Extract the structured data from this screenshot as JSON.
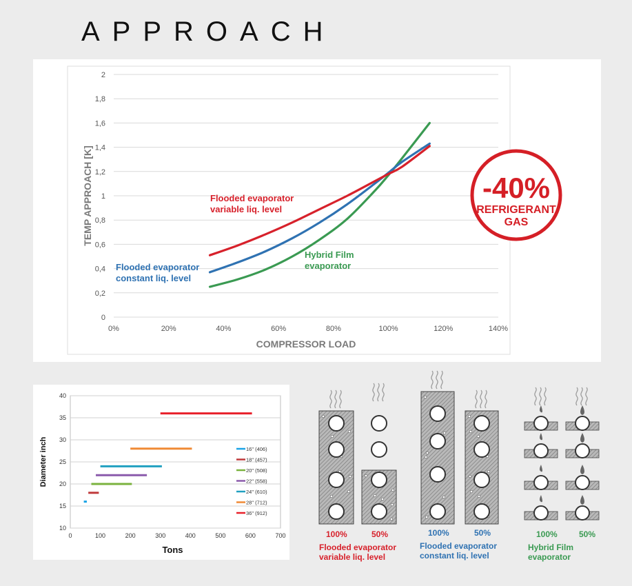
{
  "title": "APPROACH",
  "badge": {
    "line1": "-40%",
    "line2": "REFRIGERANT",
    "line3": "GAS",
    "color": "#d51f26"
  },
  "chart_data": [
    {
      "type": "line",
      "xlabel": "COMPRESSOR LOAD",
      "ylabel": "TEMP APPROACH [K]",
      "xlim": [
        0,
        140
      ],
      "ylim": [
        0,
        2
      ],
      "x_ticks": [
        "0%",
        "20%",
        "40%",
        "60%",
        "80%",
        "100%",
        "120%",
        "140%"
      ],
      "y_ticks": [
        "0",
        "0,2",
        "0,4",
        "0,6",
        "0,8",
        "1",
        "1,2",
        "1,4",
        "1,6",
        "1,8",
        "2"
      ],
      "grid": true,
      "series": [
        {
          "name": "Flooded evaporator variable liq. level",
          "label_lines": [
            "Flooded evaporator",
            "variable liq. level"
          ],
          "color": "#d7212b",
          "x": [
            35,
            45,
            55,
            65,
            75,
            85,
            95,
            100,
            105,
            115
          ],
          "y": [
            0.51,
            0.59,
            0.68,
            0.78,
            0.89,
            1.0,
            1.12,
            1.18,
            1.24,
            1.41
          ]
        },
        {
          "name": "Flooded evaporator constant liq. level",
          "label_lines": [
            "Flooded evaporator",
            "constant liq. level"
          ],
          "color": "#2f72b2",
          "x": [
            35,
            45,
            55,
            65,
            75,
            85,
            95,
            100,
            105,
            115
          ],
          "y": [
            0.37,
            0.45,
            0.54,
            0.65,
            0.78,
            0.93,
            1.1,
            1.19,
            1.28,
            1.43
          ]
        },
        {
          "name": "Hybrid Film evaporator",
          "label_lines": [
            "Hybrid Film",
            "evaporator"
          ],
          "color": "#3a9a52",
          "x": [
            35,
            45,
            55,
            65,
            75,
            85,
            95,
            100,
            105,
            115
          ],
          "y": [
            0.25,
            0.31,
            0.39,
            0.5,
            0.64,
            0.81,
            1.04,
            1.17,
            1.31,
            1.6
          ]
        }
      ]
    },
    {
      "type": "line",
      "xlabel": "Tons",
      "ylabel": "Diameter inch",
      "xlim": [
        0,
        700
      ],
      "ylim": [
        10,
        40
      ],
      "x_ticks": [
        "0",
        "100",
        "200",
        "300",
        "400",
        "500",
        "600",
        "700"
      ],
      "y_ticks": [
        "10",
        "15",
        "20",
        "25",
        "30",
        "35",
        "40"
      ],
      "grid": true,
      "legend": "right",
      "series": [
        {
          "name": "16\" (406)",
          "color": "#1aa3e6",
          "x": [
            45,
            55
          ],
          "y": [
            16,
            16
          ]
        },
        {
          "name": "18\" (457)",
          "color": "#c0393b",
          "x": [
            60,
            95
          ],
          "y": [
            18,
            18
          ]
        },
        {
          "name": "20\" (508)",
          "color": "#7ab23e",
          "x": [
            70,
            205
          ],
          "y": [
            20,
            20
          ]
        },
        {
          "name": "22\" (558)",
          "color": "#8a5aab",
          "x": [
            85,
            255
          ],
          "y": [
            22,
            22
          ]
        },
        {
          "name": "24\" (610)",
          "color": "#21a0c0",
          "x": [
            100,
            305
          ],
          "y": [
            24,
            24
          ]
        },
        {
          "name": "28\" (712)",
          "color": "#f08a35",
          "x": [
            200,
            405
          ],
          "y": [
            28,
            28
          ]
        },
        {
          "name": "36\" (912)",
          "color": "#e8202a",
          "x": [
            300,
            605
          ],
          "y": [
            36,
            36
          ]
        }
      ]
    }
  ],
  "illustrations": [
    {
      "name": "flooded-variable",
      "pct1": "100%",
      "pct2": "50%",
      "label_lines": [
        "Flooded evaporator",
        "variable liq. level"
      ],
      "color": "#d7212b"
    },
    {
      "name": "flooded-constant",
      "pct1": "100%",
      "pct2": "50%",
      "label_lines": [
        "Flooded evaporator",
        "constant liq. level"
      ],
      "color": "#2f72b2"
    },
    {
      "name": "hybrid-film",
      "pct1": "100%",
      "pct2": "50%",
      "label_lines": [
        "Hybrid Film",
        "evaporator"
      ],
      "color": "#3a9a52"
    }
  ]
}
